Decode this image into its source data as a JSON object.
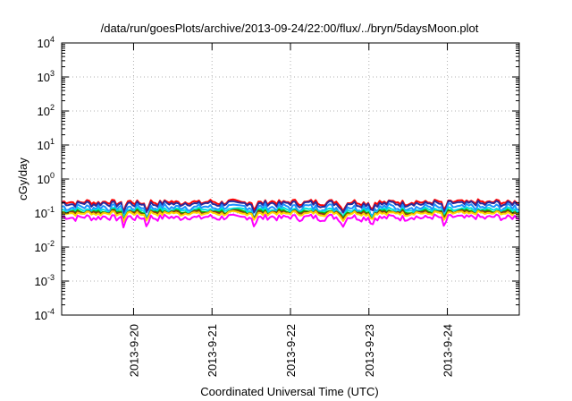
{
  "chart_data": {
    "type": "line",
    "title": "/data/run/goesPlots/archive/2013-09-24/22:00/flux/../bryn/5daysMoon.plot",
    "xlabel": "Coordinated Universal Time (UTC)",
    "ylabel": "cGy/day",
    "yscale": "log",
    "ylim": [
      0.0001,
      10000
    ],
    "xlim": [
      "2013-09-19T02:00",
      "2013-09-24T22:00"
    ],
    "grid": true,
    "y_ticks": [
      {
        "base": "10",
        "exp": "4"
      },
      {
        "base": "10",
        "exp": "3"
      },
      {
        "base": "10",
        "exp": "2"
      },
      {
        "base": "10",
        "exp": "1"
      },
      {
        "base": "10",
        "exp": "0"
      },
      {
        "base": "10",
        "exp": "-1"
      },
      {
        "base": "10",
        "exp": "-2"
      },
      {
        "base": "10",
        "exp": "-3"
      },
      {
        "base": "10",
        "exp": "-4"
      }
    ],
    "x_ticks": [
      "2013-9-20",
      "2013-9-21",
      "2013-9-22",
      "2013-9-23",
      "2013-9-24"
    ],
    "x_tick_dates": [
      "2013-09-20",
      "2013-09-21",
      "2013-09-22",
      "2013-09-23",
      "2013-09-24"
    ],
    "dips": [
      "2013-09-19T21:00",
      "2013-09-20T04:00",
      "2013-09-21T13:00",
      "2013-09-22T16:00",
      "2013-09-23T01:00",
      "2013-09-23T23:00"
    ],
    "series": [
      {
        "color": "#ff0000",
        "level": 0.21,
        "spread": 0.17
      },
      {
        "color": "#2a2a9a",
        "level": 0.19,
        "spread": 0.19
      },
      {
        "color": "#1e90ff",
        "level": 0.15,
        "spread": 0.24
      },
      {
        "color": "#00e0e0",
        "level": 0.125,
        "spread": 0.15
      },
      {
        "color": "#00bb00",
        "level": 0.11,
        "spread": 0.13
      },
      {
        "color": "#8b3a0f",
        "level": 0.105,
        "spread": 0.12
      },
      {
        "color": "#ffd700",
        "level": 0.098,
        "spread": 0.13
      },
      {
        "color": "#ff00ff",
        "level": 0.075,
        "spread": 0.2
      }
    ]
  }
}
